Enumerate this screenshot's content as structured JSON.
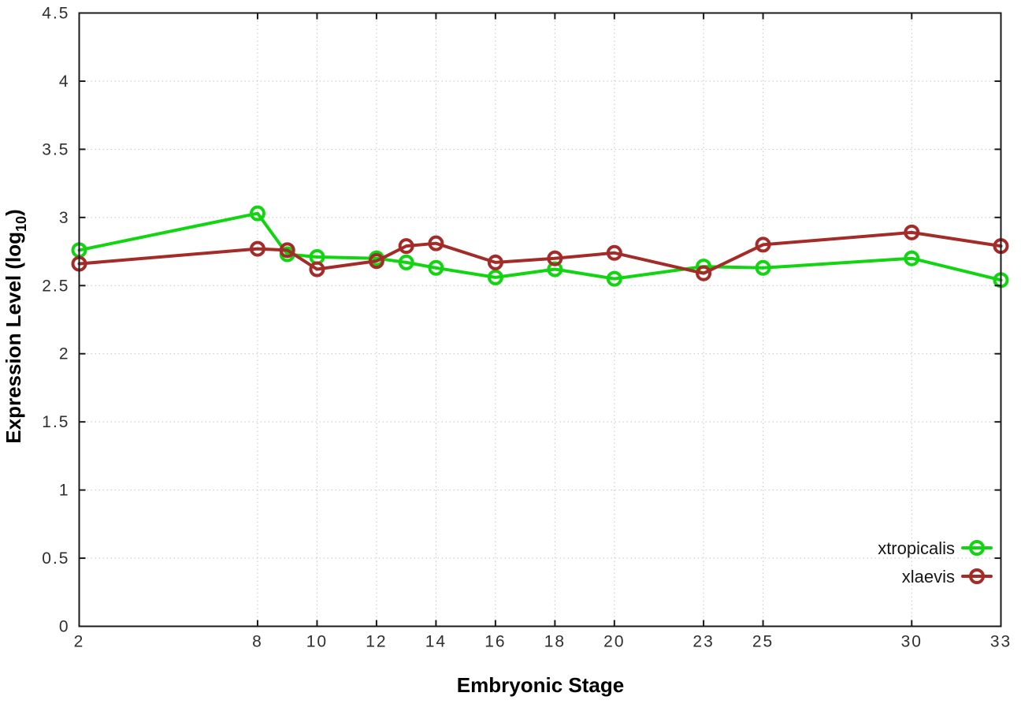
{
  "chart_data": {
    "type": "line",
    "title": "",
    "xlabel": "Embryonic Stage",
    "ylabel": "Expression Level (log10)",
    "ylabel_pre": "Expression Level (log",
    "ylabel_sub": "10",
    "ylabel_post": ")",
    "x": [
      2,
      8,
      9,
      10,
      12,
      13,
      14,
      16,
      18,
      20,
      23,
      25,
      30,
      33
    ],
    "series": [
      {
        "name": "xtropicalis",
        "color": "#10d510",
        "values": [
          2.76,
          3.03,
          2.73,
          2.71,
          2.7,
          2.67,
          2.63,
          2.56,
          2.62,
          2.55,
          2.64,
          2.63,
          2.7,
          2.54
        ]
      },
      {
        "name": "xlaevis",
        "color": "#a32b28",
        "values": [
          2.66,
          2.77,
          2.76,
          2.62,
          2.68,
          2.79,
          2.81,
          2.67,
          2.7,
          2.74,
          2.59,
          2.8,
          2.89,
          2.79
        ]
      }
    ],
    "xlim": [
      2,
      33
    ],
    "ylim": [
      0,
      4.5
    ],
    "x_ticks": [
      2,
      8,
      10,
      12,
      14,
      16,
      18,
      20,
      23,
      25,
      30,
      33
    ],
    "x_tick_labels": [
      "2",
      "8",
      "10",
      "12",
      "14",
      "16",
      "18",
      "20",
      "23",
      "25",
      "30",
      "33"
    ],
    "y_ticks": [
      0,
      0.5,
      1,
      1.5,
      2,
      2.5,
      3,
      3.5,
      4,
      4.5
    ],
    "y_tick_labels": [
      "0",
      "0.5",
      "1",
      "1.5",
      "2",
      "2.5",
      "3",
      "3.5",
      "4",
      "4.5"
    ],
    "grid": true,
    "legend_position": "bottom-right",
    "marker": "open-circle"
  },
  "colors": {
    "background": "#ffffff",
    "axis": "#1a1a1a",
    "gridline": "#c6c6c6",
    "tick_text": "#2f2f2f",
    "series_green": "#10d510",
    "series_red": "#a32b28"
  }
}
